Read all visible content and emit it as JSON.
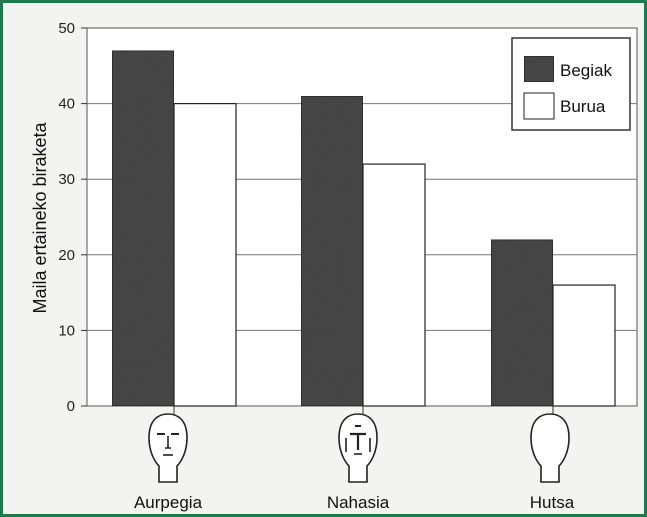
{
  "chart_data": {
    "type": "bar",
    "title": "",
    "xlabel": "",
    "ylabel": "Maila ertaineko biraketa",
    "ylim": [
      0,
      50
    ],
    "yticks": [
      0,
      10,
      20,
      30,
      40,
      50
    ],
    "grid": true,
    "legend_position": "top-right",
    "categories": [
      "Aurpegia",
      "Nahasia",
      "Hutsa"
    ],
    "series": [
      {
        "name": "Begiak",
        "values": [
          47,
          41,
          22
        ],
        "color": "#4a4a4a"
      },
      {
        "name": "Burua",
        "values": [
          40,
          32,
          16
        ],
        "color": "#ffffff"
      }
    ],
    "category_icons": [
      "face-icon",
      "scrambled-face-icon",
      "blank-head-icon"
    ]
  }
}
